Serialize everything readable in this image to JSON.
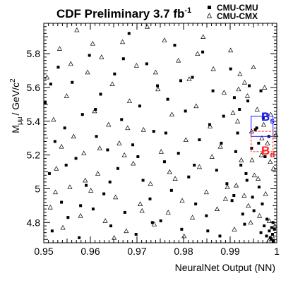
{
  "chart_data": {
    "type": "scatter",
    "title": "CDF Preliminary 3.7 fb",
    "title_sup": "-1",
    "title_color": "#1a1aff",
    "xlabel": "NeuralNet Output (NN)",
    "ylabel_main": "M",
    "ylabel_sub": "μμ",
    "ylabel_unit": "/ GeV/c",
    "ylabel_sup": "2",
    "xlim": [
      0.95,
      1.0
    ],
    "ylim": [
      4.68,
      5.98
    ],
    "x_ticks": [
      "0.95",
      "0.96",
      "0.97",
      "0.98",
      "0.99",
      "1"
    ],
    "y_ticks": [
      "4.8",
      "5",
      "5.2",
      "5.4",
      "5.6",
      "5.8"
    ],
    "x_tick_values": [
      0.95,
      0.96,
      0.97,
      0.98,
      0.99,
      1.0
    ],
    "y_tick_values": [
      4.8,
      5.0,
      5.2,
      5.4,
      5.6,
      5.8
    ],
    "grid": false,
    "legend_position": "top-right",
    "series": [
      {
        "name": "CMU-CMU",
        "marker": "square",
        "points": [
          [
            0.9503,
            5.51
          ],
          [
            0.9512,
            5.09
          ],
          [
            0.9518,
            4.75
          ],
          [
            0.9524,
            5.28
          ],
          [
            0.9531,
            5.72
          ],
          [
            0.9538,
            4.92
          ],
          [
            0.9545,
            5.36
          ],
          [
            0.9552,
            4.83
          ],
          [
            0.9561,
            5.63
          ],
          [
            0.9569,
            5.18
          ],
          [
            0.9576,
            4.71
          ],
          [
            0.9583,
            5.44
          ],
          [
            0.9591,
            5.02
          ],
          [
            0.9598,
            5.79
          ],
          [
            0.9606,
            4.88
          ],
          [
            0.9613,
            5.31
          ],
          [
            0.9622,
            5.56
          ],
          [
            0.9629,
            4.97
          ],
          [
            0.9637,
            5.23
          ],
          [
            0.9644,
            4.78
          ],
          [
            0.9652,
            5.68
          ],
          [
            0.9659,
            5.12
          ],
          [
            0.9667,
            5.41
          ],
          [
            0.9674,
            4.86
          ],
          [
            0.9683,
            5.92
          ],
          [
            0.9691,
            5.26
          ],
          [
            0.9698,
            4.73
          ],
          [
            0.9706,
            5.49
          ],
          [
            0.9713,
            5.05
          ],
          [
            0.9721,
            5.74
          ],
          [
            0.9728,
            4.94
          ],
          [
            0.9736,
            5.34
          ],
          [
            0.9744,
            5.61
          ],
          [
            0.9751,
            4.81
          ],
          [
            0.9759,
            5.16
          ],
          [
            0.9766,
            5.53
          ],
          [
            0.9774,
            4.99
          ],
          [
            0.9781,
            5.85
          ],
          [
            0.9789,
            5.21
          ],
          [
            0.9796,
            4.76
          ],
          [
            0.9804,
            5.46
          ],
          [
            0.9811,
            5.07
          ],
          [
            0.9819,
            5.66
          ],
          [
            0.9826,
            4.91
          ],
          [
            0.9834,
            5.29
          ],
          [
            0.9841,
            5.81
          ],
          [
            0.9849,
            4.84
          ],
          [
            0.9856,
            5.38
          ],
          [
            0.9863,
            5.58
          ],
          [
            0.9871,
            5.11
          ],
          [
            0.9878,
            4.72
          ],
          [
            0.9886,
            5.43
          ],
          [
            0.9893,
            5.03
          ],
          [
            0.9901,
            5.71
          ],
          [
            0.9908,
            4.96
          ],
          [
            0.9916,
            5.33
          ],
          [
            0.9923,
            5.14
          ],
          [
            0.9931,
            4.79
          ],
          [
            0.9938,
            5.52
          ],
          [
            0.9946,
            5.24
          ],
          [
            0.9951,
            4.87
          ],
          [
            0.9957,
            5.36
          ],
          [
            0.9962,
            5.01
          ],
          [
            0.9966,
            4.74
          ],
          [
            0.9971,
            5.42
          ],
          [
            0.9975,
            5.19
          ],
          [
            0.9979,
            4.82
          ],
          [
            0.9983,
            5.31
          ],
          [
            0.9986,
            4.71
          ],
          [
            0.9989,
            4.77
          ],
          [
            0.9991,
            4.73
          ],
          [
            0.9993,
            4.69
          ],
          [
            0.9995,
            4.76
          ],
          [
            0.9992,
            4.8
          ],
          [
            0.9988,
            4.7
          ],
          [
            0.9984,
            4.75
          ],
          [
            0.9978,
            4.72
          ],
          [
            0.9973,
            4.78
          ],
          [
            0.9969,
            4.91
          ],
          [
            0.9961,
            5.27
          ],
          [
            0.9954,
            5.35
          ],
          [
            0.9948,
            4.95
          ],
          [
            0.9941,
            5.61
          ],
          [
            0.9934,
            5.09
          ],
          [
            0.9927,
            4.85
          ],
          [
            0.992,
            5.47
          ],
          [
            0.9912,
            5.22
          ],
          [
            0.9904,
            4.93
          ],
          [
            0.9515,
            5.62
          ],
          [
            0.9548,
            5.14
          ],
          [
            0.9579,
            4.9
          ],
          [
            0.9611,
            5.47
          ],
          [
            0.9642,
            5.04
          ],
          [
            0.9671,
            5.77
          ],
          [
            0.9702,
            5.19
          ],
          [
            0.9733,
            4.8
          ],
          [
            0.9762,
            5.33
          ],
          [
            0.9794,
            5.64
          ],
          [
            0.9823,
            5.14
          ],
          [
            0.9852,
            4.75
          ],
          [
            0.9881,
            5.27
          ],
          [
            0.9909,
            5.54
          ],
          [
            0.9936,
            5.05
          ],
          [
            0.9966,
            5.58
          ]
        ]
      },
      {
        "name": "CMU-CMX",
        "marker": "triangle-open",
        "points": [
          [
            0.9507,
            5.66
          ],
          [
            0.9514,
            4.89
          ],
          [
            0.9521,
            5.41
          ],
          [
            0.9527,
            5.12
          ],
          [
            0.9534,
            5.83
          ],
          [
            0.9541,
            4.77
          ],
          [
            0.9549,
            5.55
          ],
          [
            0.9556,
            5.01
          ],
          [
            0.9564,
            5.31
          ],
          [
            0.9571,
            5.94
          ],
          [
            0.9579,
            4.84
          ],
          [
            0.9586,
            5.21
          ],
          [
            0.9594,
            5.69
          ],
          [
            0.9601,
            4.99
          ],
          [
            0.9609,
            5.46
          ],
          [
            0.9616,
            5.09
          ],
          [
            0.9624,
            5.78
          ],
          [
            0.9632,
            4.81
          ],
          [
            0.9639,
            5.38
          ],
          [
            0.9647,
            5.62
          ],
          [
            0.9654,
            4.95
          ],
          [
            0.9662,
            5.27
          ],
          [
            0.9669,
            5.87
          ],
          [
            0.9677,
            4.75
          ],
          [
            0.9684,
            5.52
          ],
          [
            0.9692,
            5.15
          ],
          [
            0.9699,
            5.73
          ],
          [
            0.9707,
            4.91
          ],
          [
            0.9714,
            5.35
          ],
          [
            0.9722,
            5.96
          ],
          [
            0.9729,
            5.03
          ],
          [
            0.9737,
            4.79
          ],
          [
            0.9745,
            5.59
          ],
          [
            0.9752,
            5.22
          ],
          [
            0.9759,
            5.88
          ],
          [
            0.9767,
            4.86
          ],
          [
            0.9775,
            5.44
          ],
          [
            0.9782,
            5.06
          ],
          [
            0.9789,
            5.76
          ],
          [
            0.9797,
            4.93
          ],
          [
            0.9805,
            5.29
          ],
          [
            0.9812,
            5.65
          ],
          [
            0.9819,
            4.83
          ],
          [
            0.9827,
            5.49
          ],
          [
            0.9834,
            5.13
          ],
          [
            0.9842,
            5.9
          ],
          [
            0.9849,
            4.98
          ],
          [
            0.9857,
            5.37
          ],
          [
            0.9864,
            5.71
          ],
          [
            0.9872,
            4.88
          ],
          [
            0.9879,
            5.25
          ],
          [
            0.9887,
            5.57
          ],
          [
            0.9894,
            5.01
          ],
          [
            0.9901,
            5.82
          ],
          [
            0.9909,
            4.76
          ],
          [
            0.9916,
            5.4
          ],
          [
            0.9924,
            5.17
          ],
          [
            0.9931,
            5.63
          ],
          [
            0.9939,
            4.9
          ],
          [
            0.9946,
            5.34
          ],
          [
            0.9952,
            5.08
          ],
          [
            0.9958,
            5.47
          ],
          [
            0.9963,
            4.84
          ],
          [
            0.9967,
            5.2
          ],
          [
            0.9972,
            5.38
          ],
          [
            0.9976,
            4.97
          ],
          [
            0.998,
            5.27
          ],
          [
            0.9984,
            4.81
          ],
          [
            0.9987,
            5.44
          ],
          [
            0.999,
            4.72
          ],
          [
            0.9993,
            5.12
          ],
          [
            0.9996,
            4.78
          ],
          [
            0.9998,
            5.32
          ],
          [
            0.9986,
            5.16
          ],
          [
            0.9982,
            4.69
          ],
          [
            0.9974,
            5.6
          ],
          [
            0.9968,
            5.3
          ],
          [
            0.996,
            5.06
          ],
          [
            0.995,
            5.72
          ],
          [
            0.9944,
            4.8
          ],
          [
            0.9937,
            5.55
          ],
          [
            0.993,
            4.96
          ],
          [
            0.9921,
            5.68
          ],
          [
            0.9913,
            5.02
          ],
          [
            0.9906,
            5.45
          ],
          [
            0.9525,
            4.98
          ],
          [
            0.9558,
            5.74
          ],
          [
            0.9589,
            5.05
          ],
          [
            0.962,
            5.24
          ],
          [
            0.9651,
            4.71
          ],
          [
            0.968,
            5.36
          ],
          [
            0.9711,
            4.87
          ],
          [
            0.974,
            5.69
          ],
          [
            0.977,
            5.1
          ],
          [
            0.9801,
            4.72
          ],
          [
            0.983,
            5.8
          ],
          [
            0.9861,
            5.19
          ],
          [
            0.989,
            4.94
          ],
          [
            0.9918,
            5.59
          ],
          [
            0.9947,
            5.17
          ],
          [
            0.9975,
            5.44
          ],
          [
            0.9538,
            5.25
          ],
          [
            0.9605,
            5.86
          ],
          [
            0.9673,
            5.2
          ]
        ]
      }
    ],
    "annotations": [
      {
        "label": "B",
        "sub": "s",
        "color": "#1a1aff",
        "box_x": [
          0.9945,
          0.9992
        ],
        "box_y": [
          5.31,
          5.43
        ],
        "style": "solid"
      },
      {
        "label": "B",
        "sub": "d",
        "color": "#ff2020",
        "box_x": [
          0.9945,
          0.9992
        ],
        "box_y": [
          5.22,
          5.34
        ],
        "style": "dashed"
      }
    ]
  }
}
